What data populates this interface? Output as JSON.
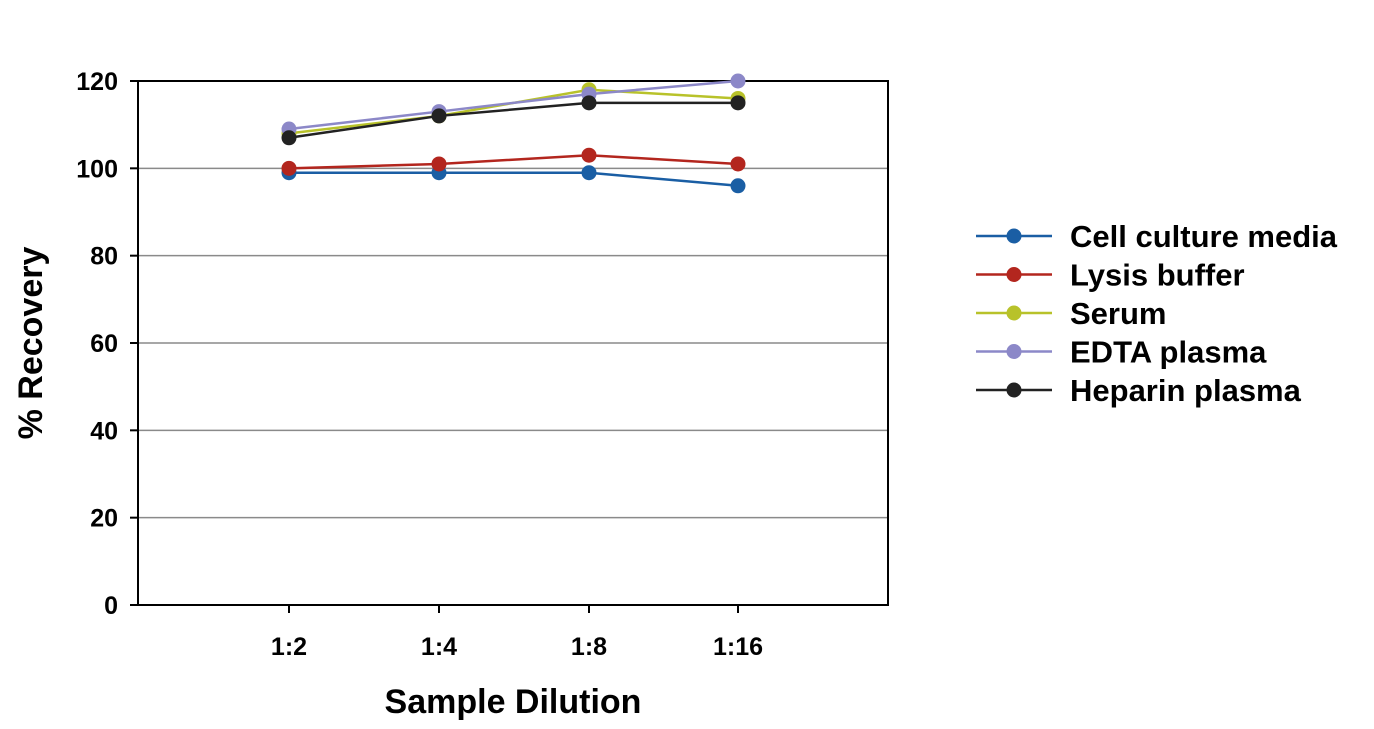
{
  "chart_data": {
    "type": "line",
    "title": "",
    "xlabel": "Sample Dilution",
    "ylabel": "% Recovery",
    "categories": [
      "1:2",
      "1:4",
      "1:8",
      "1:16"
    ],
    "ylim": [
      0,
      120
    ],
    "yticks": [
      0,
      20,
      40,
      60,
      80,
      100,
      120
    ],
    "grid": "horizontal",
    "legend_position": "right",
    "series": [
      {
        "name": "Cell culture media",
        "color": "#1a5ea4",
        "values": [
          99,
          99,
          99,
          96
        ]
      },
      {
        "name": "Lysis buffer",
        "color": "#b3261e",
        "values": [
          100,
          101,
          103,
          101
        ]
      },
      {
        "name": "Serum",
        "color": "#b8c22a",
        "values": [
          108,
          112,
          118,
          116
        ]
      },
      {
        "name": "EDTA plasma",
        "color": "#8c88c8",
        "values": [
          109,
          113,
          117,
          120
        ]
      },
      {
        "name": "Heparin plasma",
        "color": "#222222",
        "values": [
          107,
          112,
          115,
          115
        ]
      }
    ]
  }
}
